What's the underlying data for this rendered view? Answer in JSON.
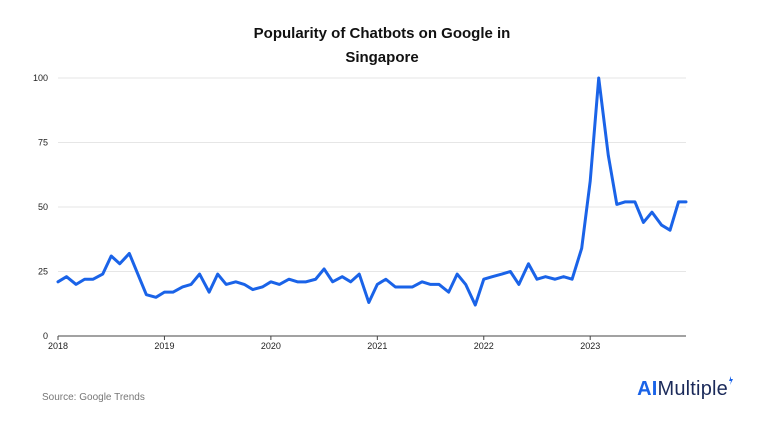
{
  "chart_data": {
    "type": "line",
    "title_lines": [
      "Popularity of Chatbots on Google in",
      "Singapore"
    ],
    "xlabel": "",
    "ylabel": "",
    "ylim": [
      0,
      100
    ],
    "y_ticks": [
      "0",
      "25",
      "50",
      "75",
      "100"
    ],
    "x_ticks": [
      {
        "label": "2018",
        "x": 2018.0
      },
      {
        "label": "2019",
        "x": 2019.0
      },
      {
        "label": "2020",
        "x": 2020.0
      },
      {
        "label": "2021",
        "x": 2021.0
      },
      {
        "label": "2022",
        "x": 2022.0
      },
      {
        "label": "2023",
        "x": 2023.0
      }
    ],
    "xlim": [
      2018.0,
      2023.9
    ],
    "grid": "horizontal",
    "line_color": "#1a63e8",
    "series": [
      {
        "x": [
          2018.0,
          2018.08,
          2018.17,
          2018.25,
          2018.33,
          2018.42,
          2018.5,
          2018.58,
          2018.67,
          2018.75,
          2018.83,
          2018.92,
          2019.0,
          2019.08,
          2019.17,
          2019.25,
          2019.33,
          2019.42,
          2019.5,
          2019.58,
          2019.67,
          2019.75,
          2019.83,
          2019.92,
          2020.0,
          2020.08,
          2020.17,
          2020.25,
          2020.33,
          2020.42,
          2020.5,
          2020.58,
          2020.67,
          2020.75,
          2020.83,
          2020.92,
          2021.0,
          2021.08,
          2021.17,
          2021.25,
          2021.33,
          2021.42,
          2021.5,
          2021.58,
          2021.67,
          2021.75,
          2021.83,
          2021.92,
          2022.0,
          2022.08,
          2022.17,
          2022.25,
          2022.33,
          2022.42,
          2022.5,
          2022.58,
          2022.67,
          2022.75,
          2022.83,
          2022.92,
          2023.0,
          2023.08,
          2023.17,
          2023.25,
          2023.33,
          2023.42,
          2023.5,
          2023.58,
          2023.67,
          2023.75,
          2023.83,
          2023.9
        ],
        "values": [
          21,
          23,
          20,
          22,
          22,
          24,
          31,
          28,
          32,
          24,
          16,
          15,
          17,
          17,
          19,
          20,
          24,
          17,
          24,
          20,
          21,
          20,
          18,
          19,
          21,
          20,
          22,
          21,
          21,
          22,
          26,
          21,
          23,
          21,
          24,
          13,
          20,
          22,
          19,
          19,
          19,
          21,
          20,
          20,
          17,
          24,
          20,
          12,
          22,
          23,
          24,
          25,
          20,
          28,
          22,
          23,
          22,
          23,
          22,
          34,
          60,
          100,
          70,
          51,
          52,
          52,
          44,
          48,
          43,
          41,
          52,
          52
        ]
      }
    ]
  },
  "footer": {
    "source": "Source: Google Trends",
    "brand_ai": "AI",
    "brand_rest": "Multiple"
  },
  "colors": {
    "brand_mark": "#1a63e8"
  }
}
